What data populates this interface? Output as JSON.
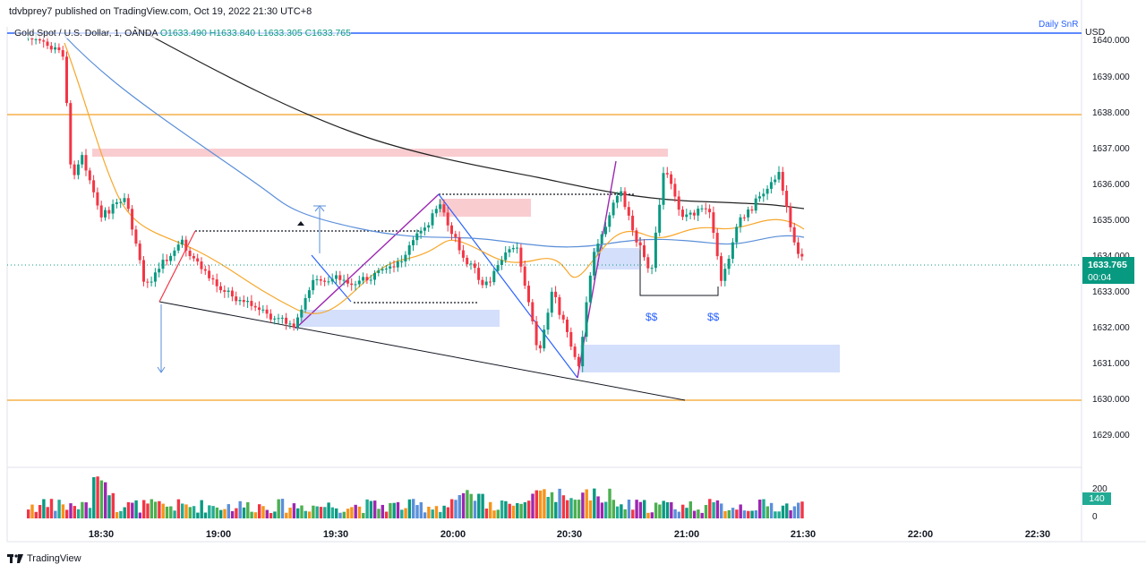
{
  "header": {
    "published": "tdvbprey7 published on TradingView.com, Oct 19, 2022 21:30 UTC+8"
  },
  "symbol": {
    "name": "Gold Spot / U.S. Dollar, 1, OANDA",
    "open": "O1633.490",
    "high": "H1633.840",
    "low": "L1633.305",
    "close": "C1633.765"
  },
  "price_axis": {
    "currency": "USD",
    "labels": [
      "1640.000",
      "1639.000",
      "1638.000",
      "1637.000",
      "1636.000",
      "1635.000",
      "1634.000",
      "1633.000",
      "1632.000",
      "1631.000",
      "1630.000",
      "1629.000"
    ],
    "volume_labels": [
      "200",
      "0"
    ]
  },
  "time_axis": {
    "labels": [
      "18:30",
      "19:00",
      "19:30",
      "20:00",
      "20:30",
      "21:00",
      "21:30",
      "22:00",
      "22:30"
    ]
  },
  "last_price": {
    "price": "1633.765",
    "countdown": "00:04"
  },
  "volume": {
    "last": "140"
  },
  "annotations": {
    "daily_snr": "Daily SnR",
    "liquidity_1": "$$",
    "liquidity_2": "$$"
  },
  "footer": {
    "brand": "TradingView"
  },
  "colors": {
    "up": "#089981",
    "down": "#f23645",
    "ema_fast": "#f7a72c",
    "ema_mid": "#5b8fd9",
    "sma_slow": "#222222",
    "snr_line": "#f5b04a",
    "daily_line": "#2962ff",
    "supply_zone": "#f8c3c8",
    "demand_zone": "#cfdcfb"
  }
}
